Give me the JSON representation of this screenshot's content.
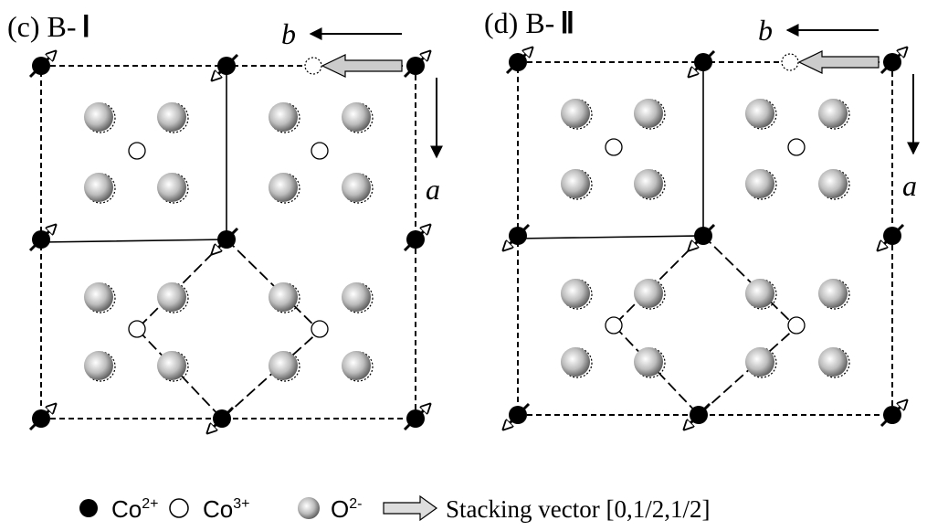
{
  "panels": [
    {
      "label": "(c) B-",
      "numeral": "Ⅰ",
      "axis_b": "b",
      "axis_a": "a"
    },
    {
      "label": "(d) B-",
      "numeral": "Ⅱ",
      "axis_b": "b",
      "axis_a": "a"
    }
  ],
  "legend": [
    {
      "symbol": "Co",
      "charge": "2+"
    },
    {
      "symbol": "Co",
      "charge": "3+"
    },
    {
      "symbol": "O",
      "charge": "2-"
    },
    {
      "text": "Stacking vector [0,1/2,1/2]"
    }
  ]
}
